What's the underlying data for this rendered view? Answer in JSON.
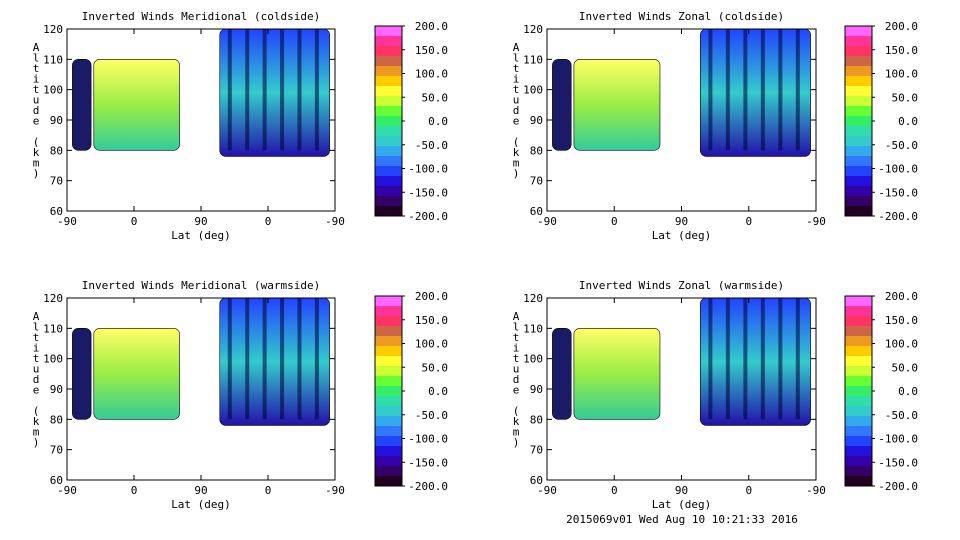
{
  "footer": "2015069v01 Wed Aug 10 10:21:33 2016",
  "colorbar": {
    "labels": [
      "200.0",
      "150.0",
      "100.0",
      "50.0",
      "0.0",
      "-50.0",
      "-100.0",
      "-150.0",
      "-200.0"
    ],
    "colors": [
      "#ff66ff",
      "#ff3399",
      "#ff3366",
      "#cc6644",
      "#ee9922",
      "#ffcc00",
      "#ffff33",
      "#ccff33",
      "#66ff33",
      "#33ee66",
      "#33ddaa",
      "#33cccc",
      "#33aaee",
      "#3377ff",
      "#2244ff",
      "#2211dd",
      "#3300aa",
      "#330066",
      "#220022"
    ]
  },
  "chart_data": [
    {
      "type": "heatmap",
      "title": "Inverted Winds Meridional (coldside)",
      "xlabel": "Lat (deg)",
      "ylabel": "Altitude (km)",
      "xticks": [
        "-90",
        "0",
        "90",
        "0",
        "-90"
      ],
      "yticks": [
        "60",
        "70",
        "80",
        "90",
        "100",
        "110",
        "120"
      ],
      "ylim": [
        60,
        120
      ],
      "value_range": [
        -200,
        200
      ]
    },
    {
      "type": "heatmap",
      "title": "Inverted Winds Zonal (coldside)",
      "xlabel": "Lat (deg)",
      "ylabel": "Altitude (km)",
      "xticks": [
        "-90",
        "0",
        "90",
        "0",
        "-90"
      ],
      "yticks": [
        "60",
        "70",
        "80",
        "90",
        "100",
        "110",
        "120"
      ],
      "ylim": [
        60,
        120
      ],
      "value_range": [
        -200,
        200
      ]
    },
    {
      "type": "heatmap",
      "title": "Inverted Winds Meridional (warmside)",
      "xlabel": "Lat (deg)",
      "ylabel": "Altitude (km)",
      "xticks": [
        "-90",
        "0",
        "90",
        "0",
        "-90"
      ],
      "yticks": [
        "60",
        "70",
        "80",
        "90",
        "100",
        "110",
        "120"
      ],
      "ylim": [
        60,
        120
      ],
      "value_range": [
        -200,
        200
      ]
    },
    {
      "type": "heatmap",
      "title": "Inverted Winds Zonal (warmside)",
      "xlabel": "Lat (deg)",
      "ylabel": "Altitude (km)",
      "xticks": [
        "-90",
        "0",
        "90",
        "0",
        "-90"
      ],
      "yticks": [
        "60",
        "70",
        "80",
        "90",
        "100",
        "110",
        "120"
      ],
      "ylim": [
        60,
        120
      ],
      "value_range": [
        -200,
        200
      ]
    }
  ]
}
